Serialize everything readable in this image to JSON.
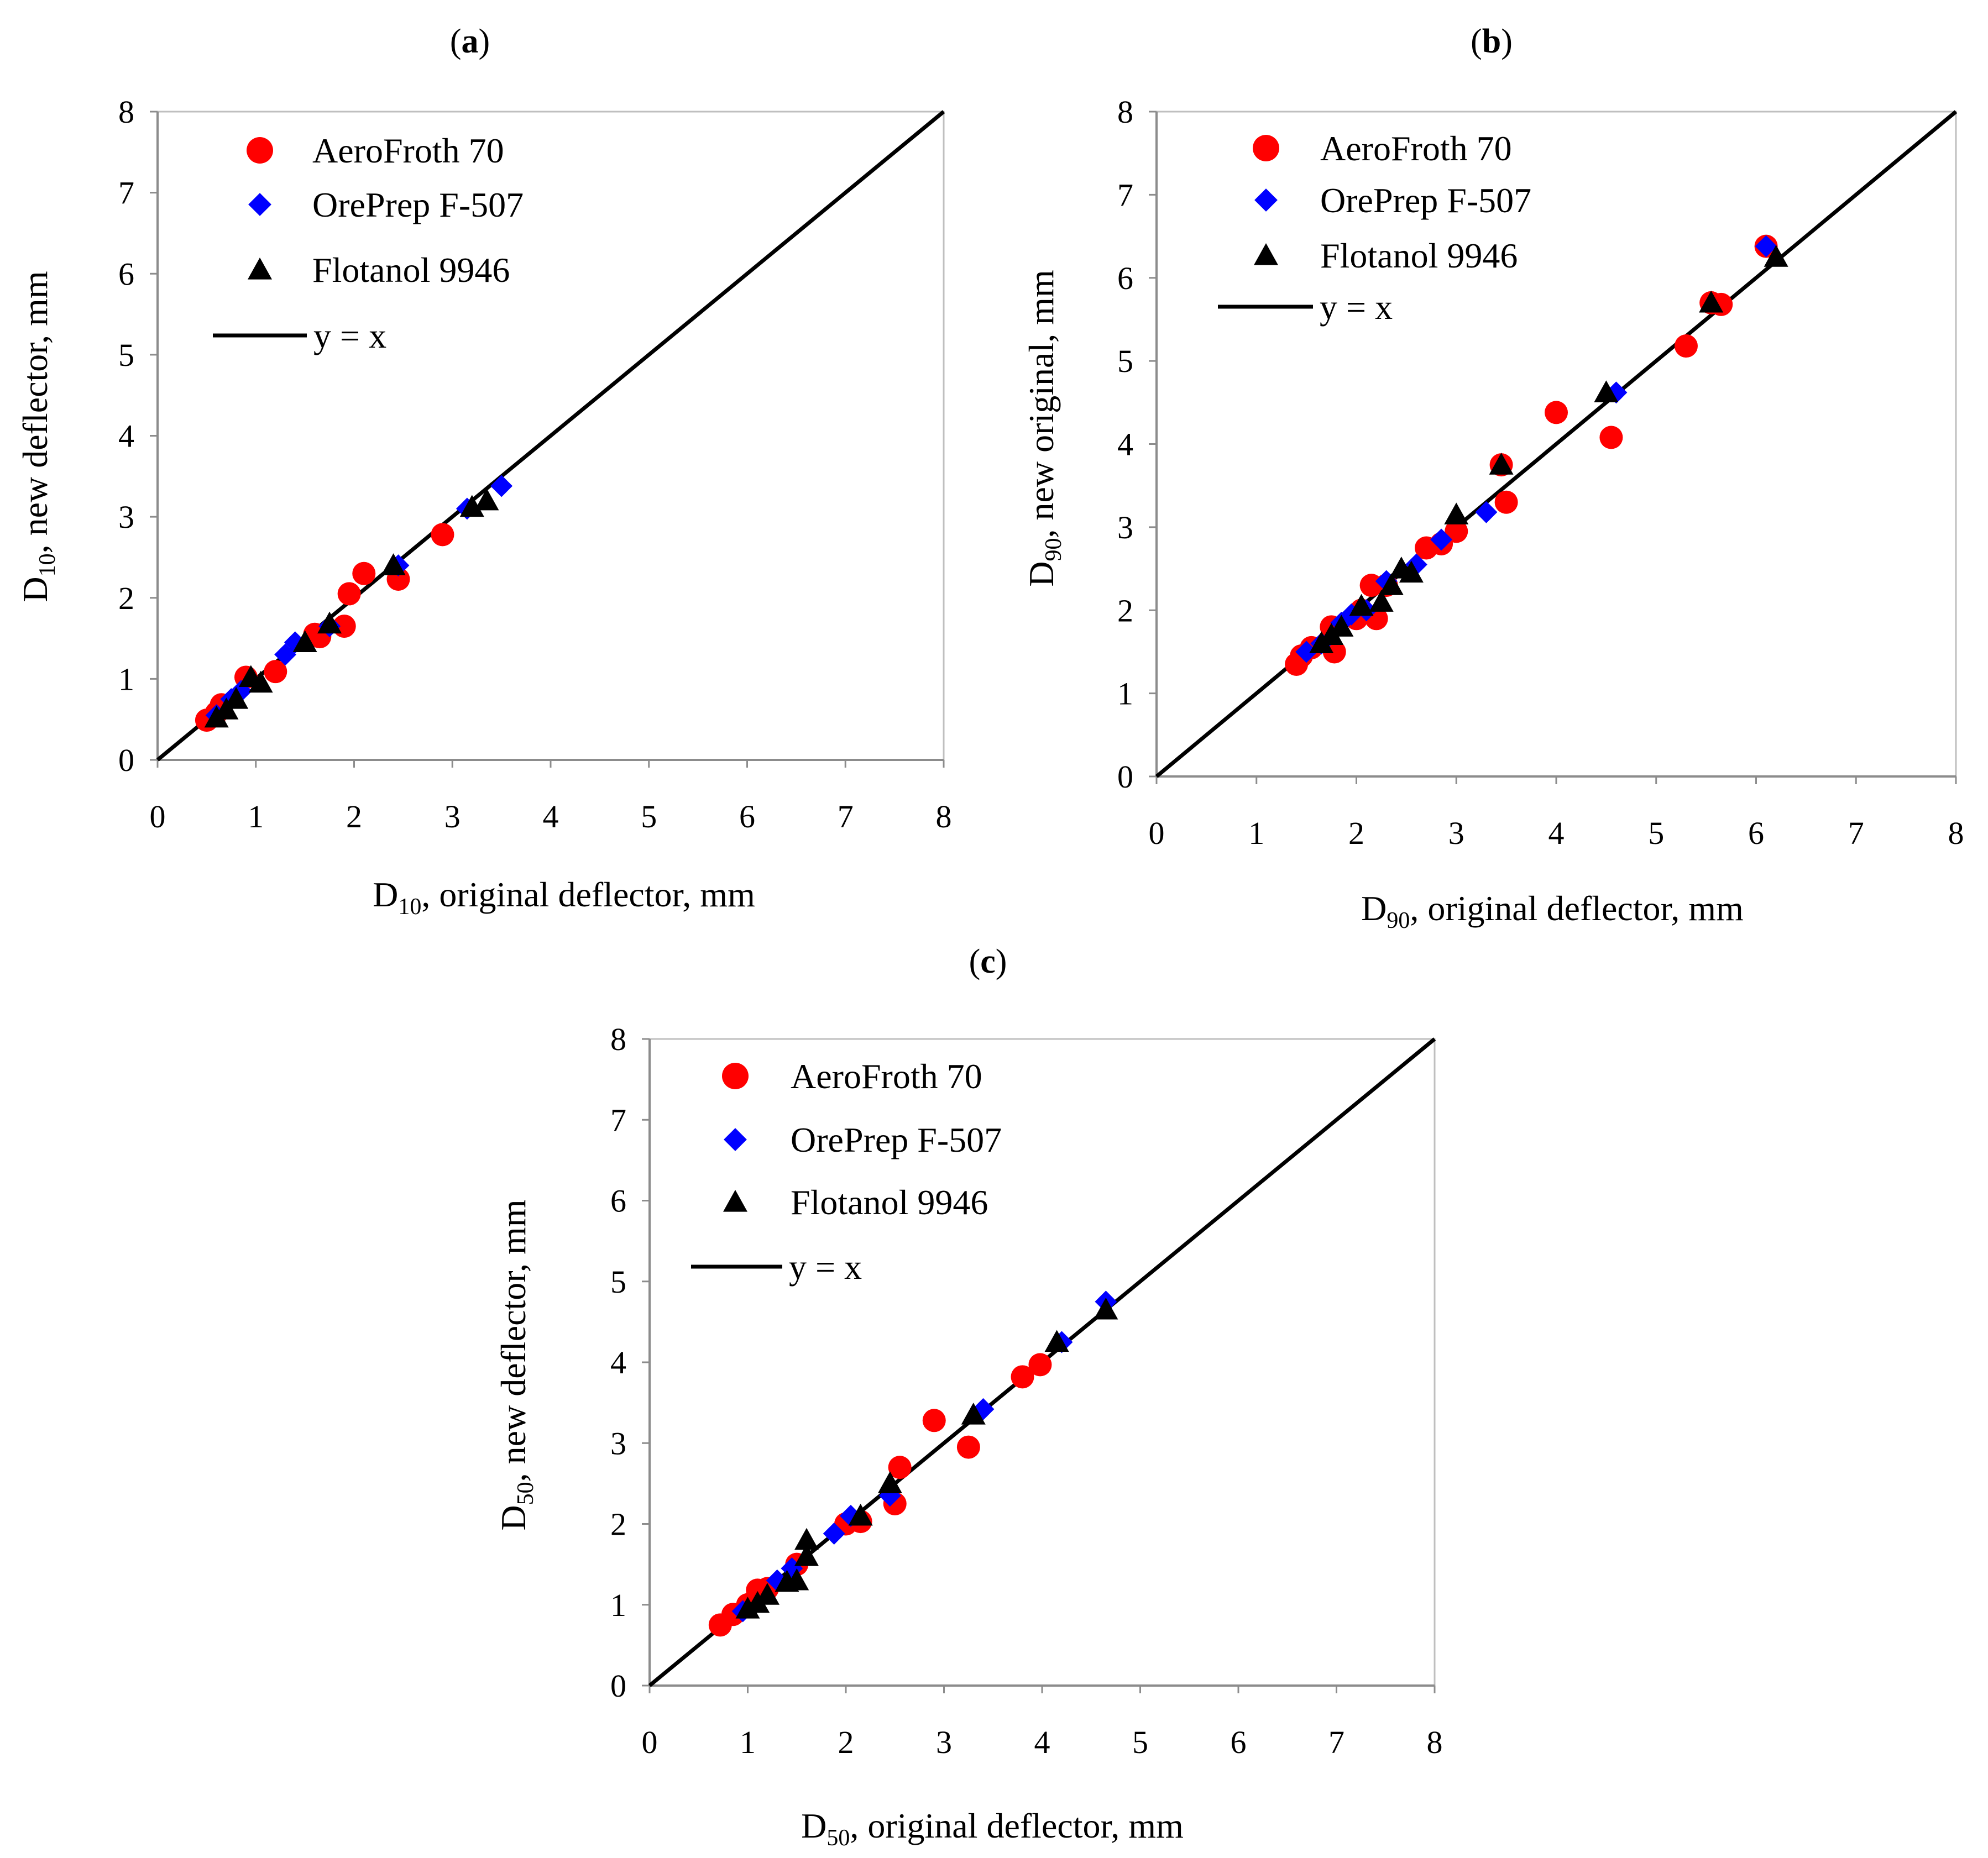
{
  "colors": {
    "aero": "#ff0000",
    "ore": "#0000ff",
    "flot": "#000000",
    "line": "#000000",
    "frame": "#bfbfbf"
  },
  "chart_data": [
    {
      "type": "scatter",
      "panel_label_open": "(",
      "panel_label_letter": "a",
      "panel_label_close": ")",
      "xlabel": {
        "base": "D",
        "sub": "10",
        "rest": ", original deflector, mm"
      },
      "ylabel": {
        "base": "D",
        "sub": "10",
        "rest": ", new deflector, mm"
      },
      "xlim": [
        0,
        8
      ],
      "ylim": [
        0,
        8
      ],
      "xticks": [
        "0",
        "1",
        "2",
        "3",
        "4",
        "5",
        "6",
        "7",
        "8"
      ],
      "yticks": [
        "0",
        "1",
        "2",
        "3",
        "4",
        "5",
        "6",
        "7",
        "8"
      ],
      "legend_position": "top-left",
      "series": [
        {
          "name": "AeroFroth 70",
          "marker": "circle",
          "color": "#ff0000",
          "points": [
            [
              0.5,
              0.49
            ],
            [
              0.6,
              0.58
            ],
            [
              0.65,
              0.68
            ],
            [
              0.9,
              1.02
            ],
            [
              1.2,
              1.09
            ],
            [
              1.6,
              1.55
            ],
            [
              1.65,
              1.52
            ],
            [
              1.9,
              1.65
            ],
            [
              1.95,
              2.05
            ],
            [
              2.1,
              2.3
            ],
            [
              2.45,
              2.23
            ],
            [
              2.9,
              2.78
            ]
          ]
        },
        {
          "name": "OrePrep F-507",
          "marker": "diamond",
          "color": "#0000ff",
          "points": [
            [
              0.6,
              0.55
            ],
            [
              0.75,
              0.75
            ],
            [
              0.85,
              0.85
            ],
            [
              1.3,
              1.3
            ],
            [
              1.4,
              1.45
            ],
            [
              1.75,
              1.65
            ],
            [
              2.45,
              2.4
            ],
            [
              3.15,
              3.1
            ],
            [
              3.5,
              3.38
            ]
          ]
        },
        {
          "name": "Flotanol 9946",
          "marker": "triangle",
          "color": "#000000",
          "points": [
            [
              0.6,
              0.52
            ],
            [
              0.7,
              0.62
            ],
            [
              0.8,
              0.75
            ],
            [
              0.95,
              1.02
            ],
            [
              1.05,
              0.95
            ],
            [
              1.5,
              1.45
            ],
            [
              1.75,
              1.68
            ],
            [
              2.4,
              2.4
            ],
            [
              3.2,
              3.12
            ],
            [
              3.35,
              3.2
            ]
          ]
        }
      ],
      "reference_line": {
        "name": "y = x"
      }
    },
    {
      "type": "scatter",
      "panel_label_open": "(",
      "panel_label_letter": "b",
      "panel_label_close": ")",
      "xlabel": {
        "base": "D",
        "sub": "90",
        "rest": ", original deflector, mm"
      },
      "ylabel": {
        "base": "D",
        "sub": "90",
        "rest": ", new original, mm"
      },
      "xlim": [
        0,
        8
      ],
      "ylim": [
        0,
        8
      ],
      "xticks": [
        "0",
        "1",
        "2",
        "3",
        "4",
        "5",
        "6",
        "7",
        "8"
      ],
      "yticks": [
        "0",
        "1",
        "2",
        "3",
        "4",
        "5",
        "6",
        "7",
        "8"
      ],
      "legend_position": "top-left",
      "series": [
        {
          "name": "AeroFroth 70",
          "marker": "circle",
          "color": "#ff0000",
          "points": [
            [
              1.4,
              1.35
            ],
            [
              1.45,
              1.45
            ],
            [
              1.55,
              1.55
            ],
            [
              1.75,
              1.8
            ],
            [
              1.78,
              1.5
            ],
            [
              2.0,
              1.9
            ],
            [
              2.05,
              2.0
            ],
            [
              2.15,
              2.3
            ],
            [
              2.2,
              1.9
            ],
            [
              2.3,
              2.3
            ],
            [
              2.7,
              2.75
            ],
            [
              2.85,
              2.8
            ],
            [
              3.0,
              2.95
            ],
            [
              3.45,
              3.75
            ],
            [
              3.5,
              3.3
            ],
            [
              4.0,
              4.38
            ],
            [
              4.55,
              4.08
            ],
            [
              5.3,
              5.18
            ],
            [
              5.55,
              5.7
            ],
            [
              5.65,
              5.68
            ],
            [
              6.1,
              6.38
            ]
          ]
        },
        {
          "name": "OrePrep F-507",
          "marker": "diamond",
          "color": "#0000ff",
          "points": [
            [
              1.5,
              1.5
            ],
            [
              1.65,
              1.6
            ],
            [
              1.85,
              1.85
            ],
            [
              1.95,
              1.95
            ],
            [
              2.1,
              2.0
            ],
            [
              2.3,
              2.35
            ],
            [
              2.6,
              2.55
            ],
            [
              2.85,
              2.85
            ],
            [
              3.3,
              3.18
            ],
            [
              4.6,
              4.62
            ],
            [
              6.1,
              6.38
            ]
          ]
        },
        {
          "name": "Flotanol 9946",
          "marker": "triangle",
          "color": "#000000",
          "points": [
            [
              1.65,
              1.6
            ],
            [
              1.75,
              1.7
            ],
            [
              1.85,
              1.8
            ],
            [
              2.05,
              2.05
            ],
            [
              2.25,
              2.1
            ],
            [
              2.35,
              2.3
            ],
            [
              2.45,
              2.5
            ],
            [
              2.55,
              2.45
            ],
            [
              3.0,
              3.15
            ],
            [
              3.45,
              3.75
            ],
            [
              4.5,
              4.62
            ],
            [
              5.55,
              5.7
            ],
            [
              6.2,
              6.25
            ]
          ]
        }
      ],
      "reference_line": {
        "name": "y = x"
      }
    },
    {
      "type": "scatter",
      "panel_label_open": "(",
      "panel_label_letter": "c",
      "panel_label_close": ")",
      "xlabel": {
        "base": "D",
        "sub": "50",
        "rest": ", original deflector, mm"
      },
      "ylabel": {
        "base": "D",
        "sub": "50",
        "rest": ", new deflector, mm"
      },
      "xlim": [
        0,
        8
      ],
      "ylim": [
        0,
        8
      ],
      "xticks": [
        "0",
        "1",
        "2",
        "3",
        "4",
        "5",
        "6",
        "7",
        "8"
      ],
      "yticks": [
        "0",
        "1",
        "2",
        "3",
        "4",
        "5",
        "6",
        "7",
        "8"
      ],
      "legend_position": "top-left",
      "series": [
        {
          "name": "AeroFroth 70",
          "marker": "circle",
          "color": "#ff0000",
          "points": [
            [
              0.72,
              0.75
            ],
            [
              0.85,
              0.88
            ],
            [
              1.0,
              1.0
            ],
            [
              1.1,
              1.18
            ],
            [
              1.2,
              1.2
            ],
            [
              1.5,
              1.5
            ],
            [
              2.0,
              2.0
            ],
            [
              2.15,
              2.03
            ],
            [
              2.5,
              2.25
            ],
            [
              2.55,
              2.7
            ],
            [
              2.9,
              3.28
            ],
            [
              3.25,
              2.95
            ],
            [
              3.8,
              3.82
            ],
            [
              3.98,
              3.97
            ]
          ]
        },
        {
          "name": "OrePrep F-507",
          "marker": "diamond",
          "color": "#0000ff",
          "points": [
            [
              0.95,
              0.92
            ],
            [
              1.3,
              1.3
            ],
            [
              1.45,
              1.45
            ],
            [
              1.88,
              1.88
            ],
            [
              2.05,
              2.1
            ],
            [
              2.45,
              2.35
            ],
            [
              3.4,
              3.42
            ],
            [
              4.2,
              4.25
            ],
            [
              4.65,
              4.75
            ]
          ]
        },
        {
          "name": "Flotanol 9946",
          "marker": "triangle",
          "color": "#000000",
          "points": [
            [
              1.0,
              0.95
            ],
            [
              1.1,
              1.02
            ],
            [
              1.2,
              1.12
            ],
            [
              1.4,
              1.28
            ],
            [
              1.5,
              1.3
            ],
            [
              1.6,
              1.6
            ],
            [
              1.6,
              1.8
            ],
            [
              2.15,
              2.1
            ],
            [
              2.45,
              2.5
            ],
            [
              3.3,
              3.35
            ],
            [
              4.15,
              4.25
            ],
            [
              4.65,
              4.65
            ]
          ]
        }
      ],
      "reference_line": {
        "name": "y = x"
      }
    }
  ]
}
